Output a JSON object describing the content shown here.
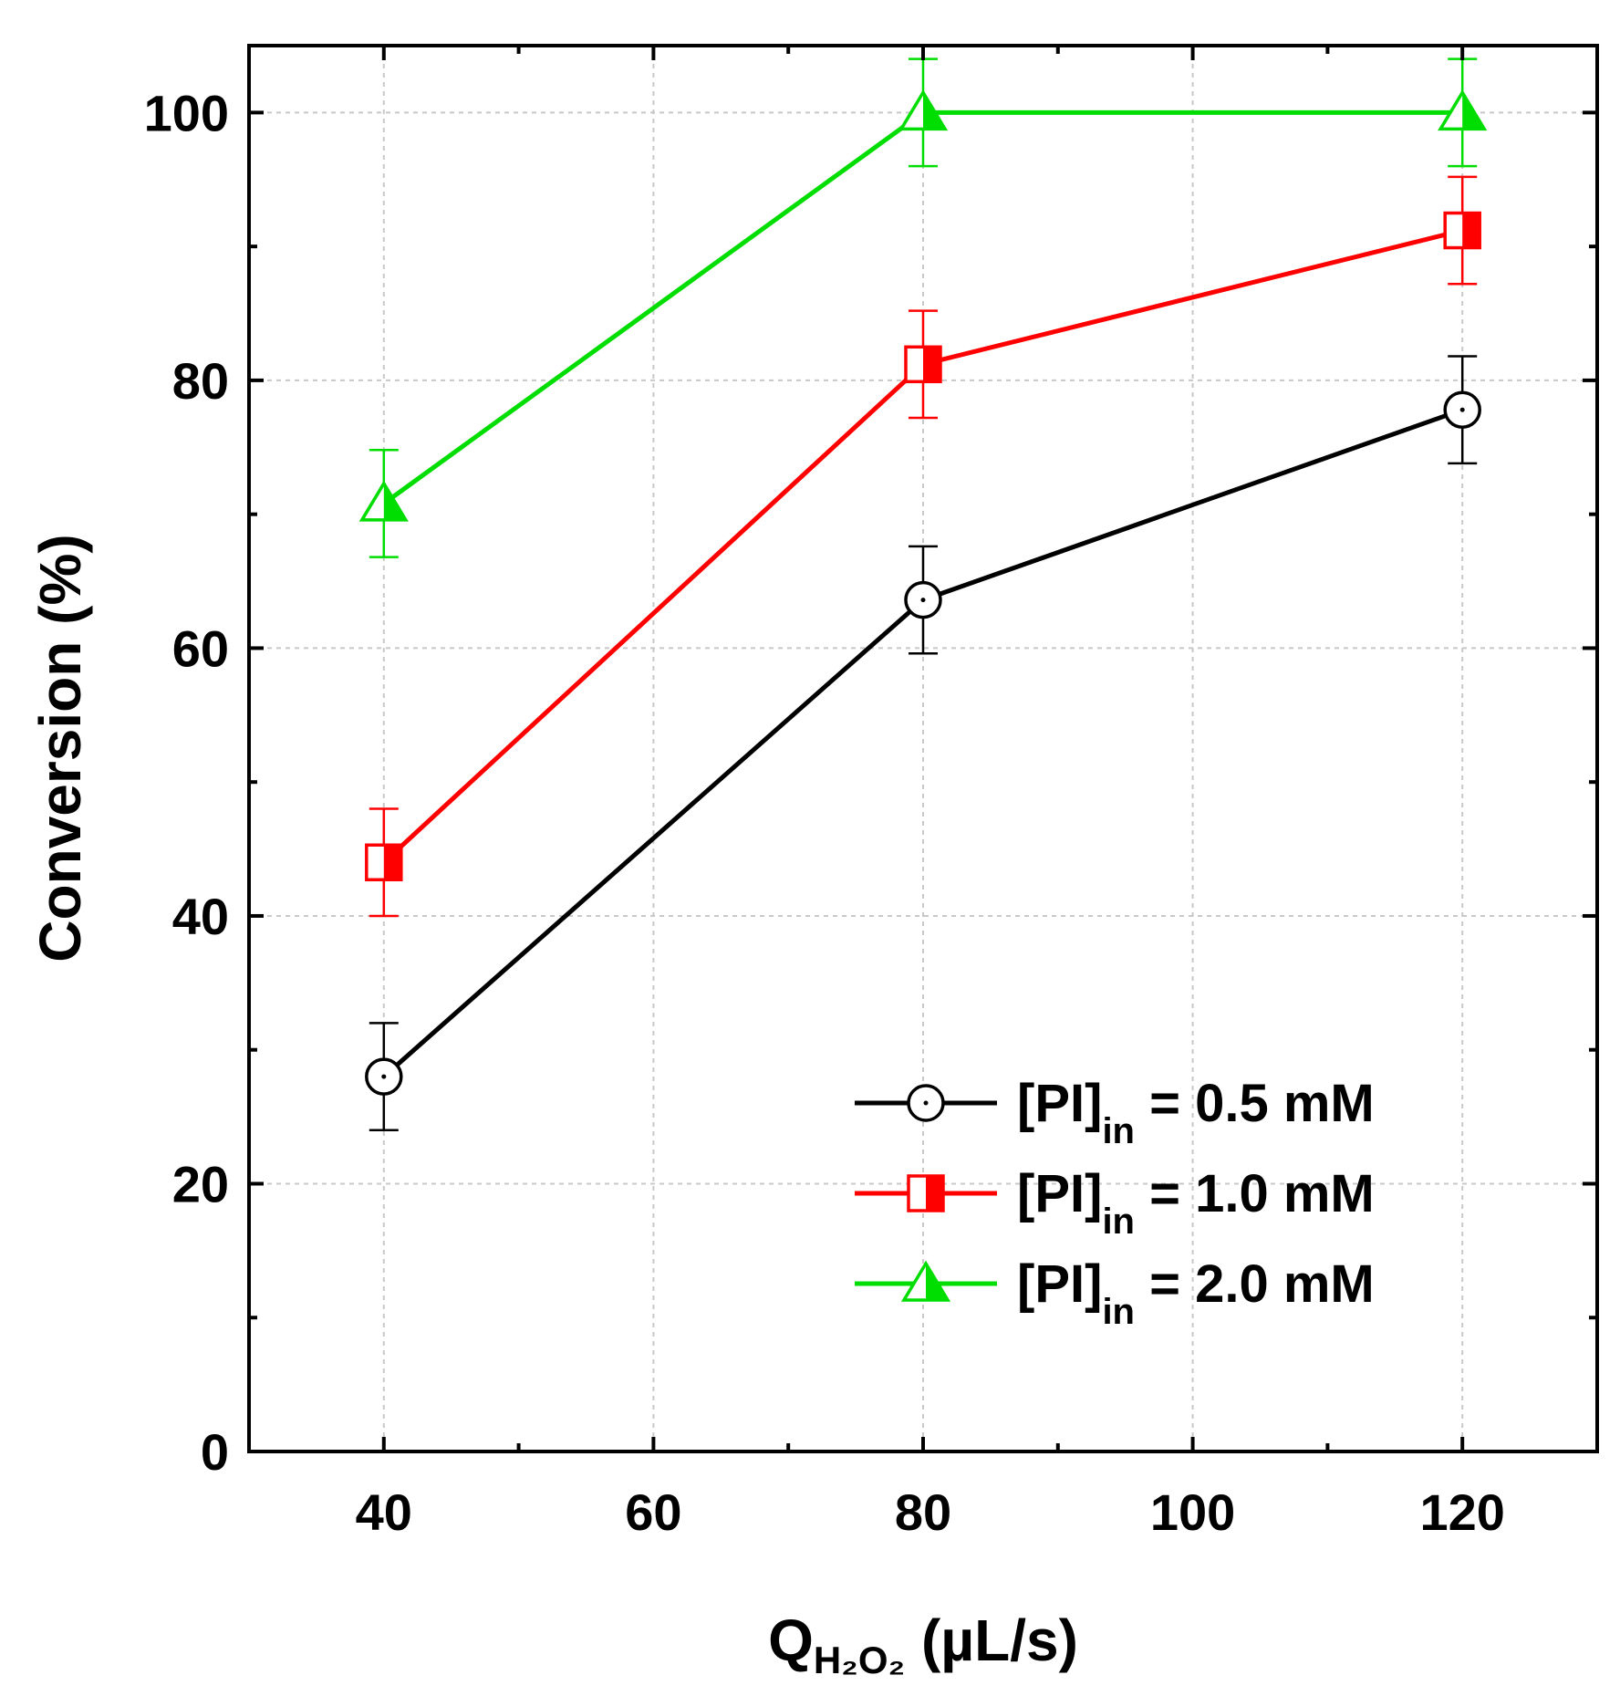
{
  "chart_data": {
    "type": "line",
    "title": "",
    "xlabel": {
      "main": "Q",
      "sub": "H₂O₂",
      "unit": " (µL/s)"
    },
    "ylabel": "Conversion (%)",
    "xlim": [
      30,
      130
    ],
    "ylim": [
      0,
      105
    ],
    "x_ticks": [
      40,
      60,
      80,
      100,
      120
    ],
    "x_tick_labels": [
      "40",
      "60",
      "80",
      "100",
      "120"
    ],
    "x_minor_ticks": [
      50,
      70,
      90,
      110
    ],
    "y_ticks": [
      0,
      20,
      40,
      60,
      80,
      100
    ],
    "y_tick_labels": [
      "0",
      "20",
      "40",
      "60",
      "80",
      "100"
    ],
    "y_minor_ticks": [
      10,
      30,
      50,
      70,
      90
    ],
    "grid": true,
    "legend_position": "bottom-right",
    "series": [
      {
        "name": "[PI]in = 0.5 mM",
        "label_main": "[PI]",
        "label_sub": "in",
        "label_rest": " = 0.5 mM",
        "color": "#000000",
        "marker": "circle-dot",
        "x": [
          40,
          80,
          120
        ],
        "y": [
          28,
          63.6,
          77.8
        ],
        "err": [
          4,
          4,
          4
        ]
      },
      {
        "name": "[PI]in = 1.0 mM",
        "label_main": "[PI]",
        "label_sub": "in",
        "label_rest": " = 1.0 mM",
        "color": "#ff0000",
        "marker": "half-filled-square",
        "x": [
          40,
          80,
          120
        ],
        "y": [
          44,
          81.2,
          91.2
        ],
        "err": [
          4,
          4,
          4
        ]
      },
      {
        "name": "[PI]in = 2.0 mM",
        "label_main": "[PI]",
        "label_sub": "in",
        "label_rest": " = 2.0 mM",
        "color": "#00dd00",
        "marker": "half-filled-triangle",
        "x": [
          40,
          80,
          120
        ],
        "y": [
          70.8,
          100,
          100
        ],
        "err": [
          4,
          4,
          4
        ]
      }
    ]
  }
}
